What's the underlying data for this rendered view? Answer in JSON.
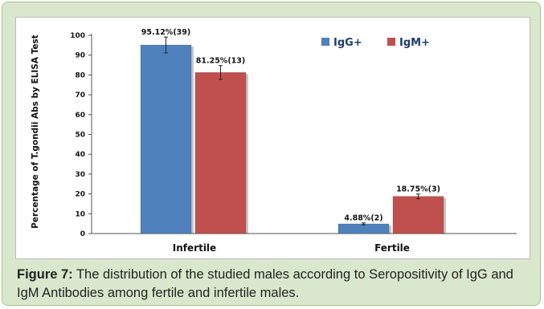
{
  "figure": {
    "caption_label": "Figure 7:",
    "caption_text": " The distribution of the studied males according to Seropositivity of IgG and IgM Antibodies among fertile and infertile males."
  },
  "chart_data": {
    "type": "bar",
    "categories": [
      "Infertile",
      "Fertile"
    ],
    "series": [
      {
        "name": "IgG+",
        "color": "#4f81bd",
        "values": [
          95.12,
          4.88
        ],
        "labels": [
          "95.12%(39)",
          "4.88%(2)"
        ],
        "error": [
          4,
          0.5
        ]
      },
      {
        "name": "IgM+",
        "color": "#c0504d",
        "values": [
          81.25,
          18.75
        ],
        "labels": [
          "81.25%(13)",
          "18.75%(3)"
        ],
        "error": [
          3.5,
          1.2
        ]
      }
    ],
    "ylabel": "Percentage of T.gondii Abs by ELISA Test",
    "xlabel": "",
    "ylim": [
      0,
      100
    ],
    "yticks": [
      0,
      10,
      20,
      30,
      40,
      50,
      60,
      70,
      80,
      90,
      100
    ],
    "grid": false,
    "legend_position": "top-right"
  }
}
